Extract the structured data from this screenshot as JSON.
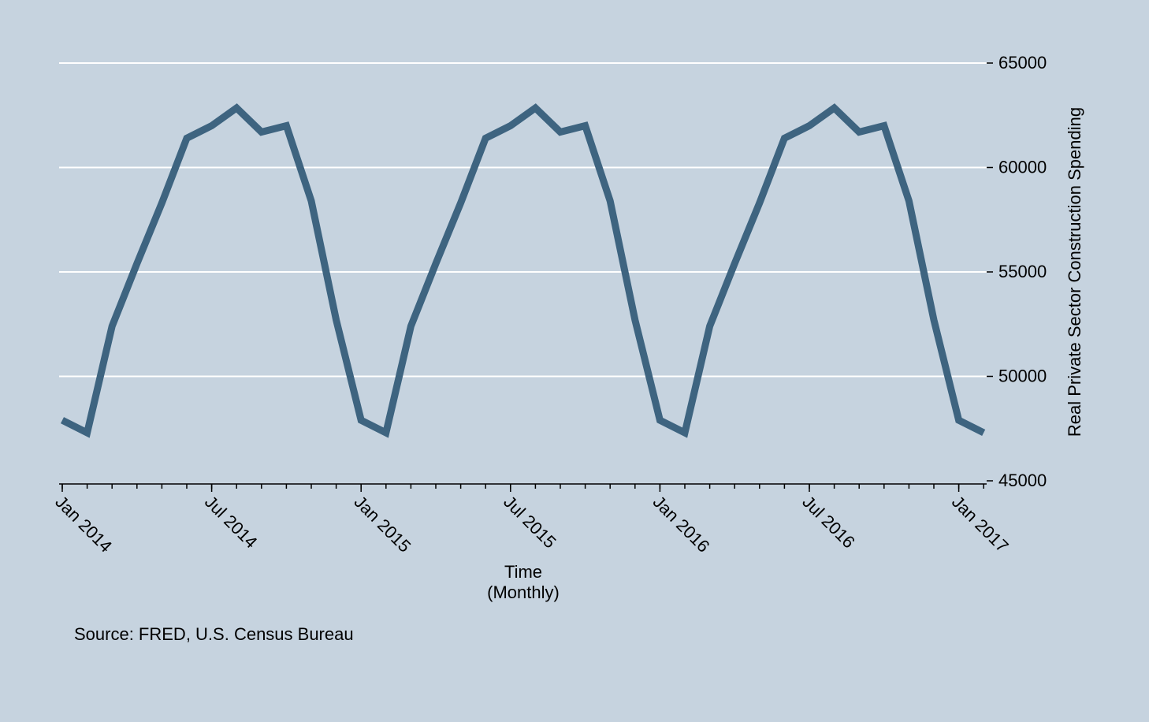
{
  "chart_data": {
    "type": "line",
    "y_label": "Real Private Sector Construction Spending",
    "x_label": "Time",
    "x_sublabel": "(Monthly)",
    "note": "Source: FRED, U.S. Census Bureau",
    "x": [
      "2014-01",
      "2014-02",
      "2014-03",
      "2014-04",
      "2014-05",
      "2014-06",
      "2014-07",
      "2014-08",
      "2014-09",
      "2014-10",
      "2014-11",
      "2014-12",
      "2015-01",
      "2015-02",
      "2015-03",
      "2015-04",
      "2015-05",
      "2015-06",
      "2015-07",
      "2015-08",
      "2015-09",
      "2015-10",
      "2015-11",
      "2015-12",
      "2016-01",
      "2016-02",
      "2016-03",
      "2016-04",
      "2016-05",
      "2016-06",
      "2016-07",
      "2016-08",
      "2016-09",
      "2016-10",
      "2016-11",
      "2016-12",
      "2017-01",
      "2017-02"
    ],
    "series": [
      {
        "color": "#3e6480",
        "values": [
          47900,
          47300,
          52400,
          55400,
          58300,
          61400,
          62000,
          62850,
          61700,
          62000,
          58400,
          52700,
          47900,
          47300,
          52400,
          55400,
          58300,
          61400,
          62000,
          62850,
          61700,
          62000,
          58400,
          52700,
          47900,
          47300,
          52400,
          55400,
          58300,
          61400,
          62000,
          62850,
          61700,
          62000,
          58400,
          52700,
          47900,
          47300
        ]
      }
    ],
    "xlim": [
      "2014-01",
      "2017-02"
    ],
    "xticks": [
      {
        "value": "2014-01",
        "label": "Jan 2014"
      },
      {
        "value": "2014-07",
        "label": "Jul 2014"
      },
      {
        "value": "2015-01",
        "label": "Jan 2015"
      },
      {
        "value": "2015-07",
        "label": "Jul 2015"
      },
      {
        "value": "2016-01",
        "label": "Jan 2016"
      },
      {
        "value": "2016-07",
        "label": "Jul 2016"
      },
      {
        "value": "2017-01",
        "label": "Jan 2017"
      }
    ],
    "ylim": [
      45000,
      65000
    ],
    "yticks": [
      45000,
      50000,
      55000,
      60000,
      65000
    ],
    "grid": true,
    "background": "#c6d3df"
  }
}
